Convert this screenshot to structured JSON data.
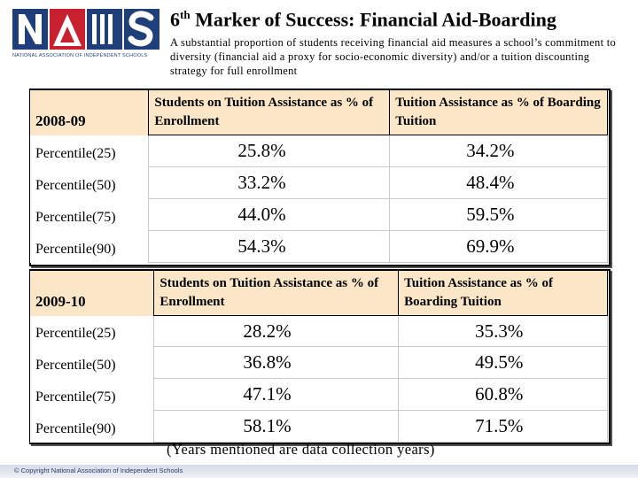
{
  "logo": {
    "letters": "NAIS",
    "caption": "NATIONAL ASSOCIATION OF INDEPENDENT SCHOOLS",
    "colors": {
      "navy": "#1f3f7a",
      "red": "#c8202f"
    }
  },
  "header": {
    "title_number": "6",
    "title_suffix": "th",
    "title_rest": " Marker of Success: Financial Aid-Boarding",
    "subtitle": "A substantial proportion of students receiving financial aid measures a school’s commitment to diversity (financial aid a proxy for socio-economic diversity) and/or a tuition discounting strategy for full enrollment"
  },
  "tables": [
    {
      "year": "2008-09",
      "col1_header": "Students on Tuition Assistance as % of Enrollment",
      "col2_header": "Tuition Assistance as % of Boarding Tuition",
      "rows": [
        {
          "label": "Percentile(25)",
          "col1": "25.8%",
          "col2": "34.2%"
        },
        {
          "label": "Percentile(50)",
          "col1": "33.2%",
          "col2": "48.4%"
        },
        {
          "label": "Percentile(75)",
          "col1": "44.0%",
          "col2": "59.5%"
        },
        {
          "label": "Percentile(90)",
          "col1": "54.3%",
          "col2": "69.9%"
        }
      ]
    },
    {
      "year": "2009-10",
      "col1_header": "Students on Tuition Assistance as % of Enrollment",
      "col2_header": "Tuition Assistance as % of Boarding Tuition",
      "rows": [
        {
          "label": "Percentile(25)",
          "col1": "28.2%",
          "col2": "35.3%"
        },
        {
          "label": "Percentile(50)",
          "col1": "36.8%",
          "col2": "49.5%"
        },
        {
          "label": "Percentile(75)",
          "col1": "47.1%",
          "col2": "60.8%"
        },
        {
          "label": "Percentile(90)",
          "col1": "58.1%",
          "col2": "71.5%"
        }
      ]
    }
  ],
  "footnote": "(Years mentioned are data collection years)",
  "copyright": "© Copyright National Association of Independent Schools",
  "colors": {
    "header_fill": "#fce6c8"
  }
}
